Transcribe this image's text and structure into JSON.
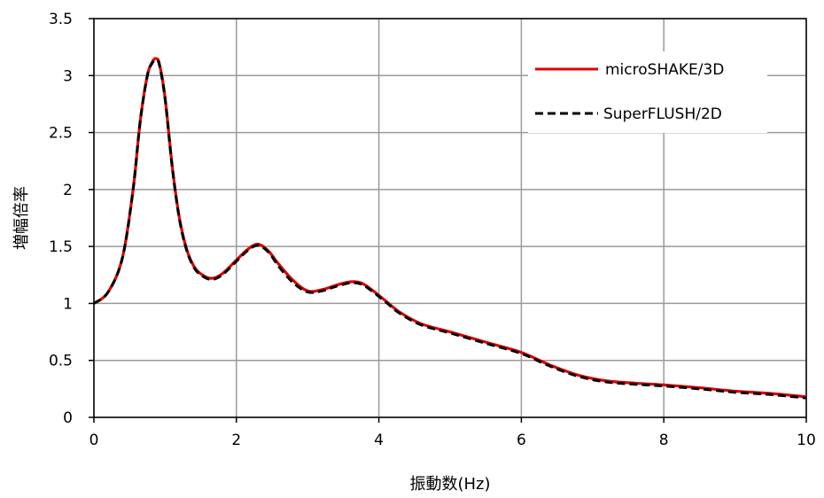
{
  "chart_data": {
    "type": "line",
    "title": "",
    "xlabel": "振動数(Hz)",
    "ylabel": "増幅倍率",
    "xlim": [
      0,
      10
    ],
    "ylim": [
      0,
      3.5
    ],
    "xticks": [
      "0",
      "2",
      "4",
      "6",
      "8",
      "10"
    ],
    "yticks": [
      "0",
      "0.5",
      "1",
      "1.5",
      "2",
      "2.5",
      "3",
      "3.5"
    ],
    "grid": true,
    "legend_position": "top-right",
    "x": [
      0,
      0.2,
      0.4,
      0.55,
      0.65,
      0.75,
      0.82,
      0.87,
      0.92,
      1.0,
      1.1,
      1.2,
      1.3,
      1.4,
      1.5,
      1.65,
      1.8,
      2.0,
      2.15,
      2.3,
      2.45,
      2.6,
      2.8,
      3.0,
      3.2,
      3.4,
      3.6,
      3.75,
      3.9,
      4.1,
      4.3,
      4.6,
      5.0,
      5.5,
      6.0,
      6.4,
      6.8,
      7.2,
      7.6,
      8.0,
      8.5,
      9.0,
      9.5,
      10.0
    ],
    "series": [
      {
        "name": "microSHAKE/3D",
        "color": "#e00000",
        "style": "solid",
        "values": [
          1.0,
          1.1,
          1.4,
          2.0,
          2.6,
          3.0,
          3.12,
          3.15,
          3.1,
          2.8,
          2.2,
          1.75,
          1.48,
          1.33,
          1.26,
          1.22,
          1.26,
          1.38,
          1.47,
          1.52,
          1.46,
          1.34,
          1.2,
          1.11,
          1.12,
          1.16,
          1.19,
          1.18,
          1.12,
          1.02,
          0.92,
          0.82,
          0.75,
          0.66,
          0.57,
          0.46,
          0.37,
          0.32,
          0.3,
          0.285,
          0.26,
          0.23,
          0.21,
          0.18
        ]
      },
      {
        "name": "SuperFLUSH/2D",
        "color": "#000000",
        "style": "dashed",
        "values": [
          1.0,
          1.1,
          1.4,
          2.0,
          2.6,
          3.0,
          3.11,
          3.14,
          3.09,
          2.79,
          2.19,
          1.74,
          1.47,
          1.32,
          1.25,
          1.21,
          1.25,
          1.37,
          1.46,
          1.51,
          1.45,
          1.32,
          1.18,
          1.1,
          1.11,
          1.15,
          1.18,
          1.17,
          1.11,
          1.01,
          0.91,
          0.81,
          0.74,
          0.65,
          0.56,
          0.45,
          0.36,
          0.31,
          0.29,
          0.275,
          0.25,
          0.22,
          0.2,
          0.17
        ]
      }
    ]
  }
}
